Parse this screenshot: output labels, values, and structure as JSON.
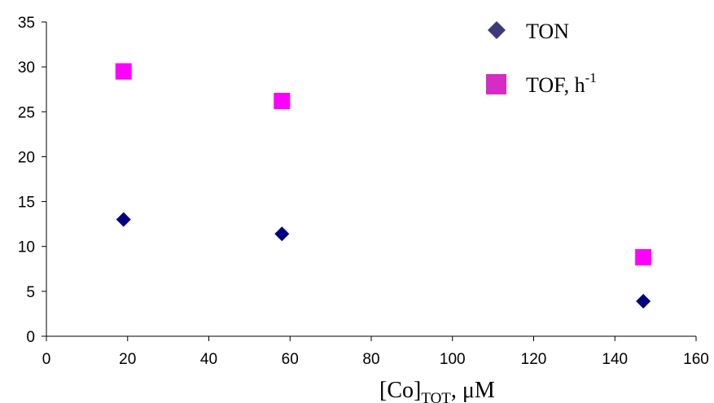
{
  "chart_data": {
    "type": "scatter",
    "xlabel": {
      "main": "[Co]",
      "sub": "TOT",
      "rest": ", μM"
    },
    "xlim": [
      0,
      160
    ],
    "ylim": [
      0,
      35
    ],
    "x_ticks": [
      "0",
      "20",
      "40",
      "60",
      "80",
      "100",
      "120",
      "140",
      "160"
    ],
    "y_ticks": [
      "0",
      "5",
      "10",
      "15",
      "20",
      "25",
      "30",
      "35"
    ],
    "grid": false,
    "legend_position": "top-right",
    "series": [
      {
        "name": "TON",
        "marker": "diamond",
        "color": "#000080",
        "legend_color": "#3e3a7a",
        "points": [
          {
            "x": 19,
            "y": 13.0
          },
          {
            "x": 58,
            "y": 11.4
          },
          {
            "x": 147,
            "y": 3.9
          }
        ]
      },
      {
        "name": "TOF, h",
        "name_superscript": "-1",
        "marker": "square",
        "color": "#ff00ff",
        "legend_color": "#d42cc4",
        "points": [
          {
            "x": 19,
            "y": 29.5
          },
          {
            "x": 58,
            "y": 26.2
          },
          {
            "x": 147,
            "y": 8.8
          }
        ]
      }
    ]
  }
}
